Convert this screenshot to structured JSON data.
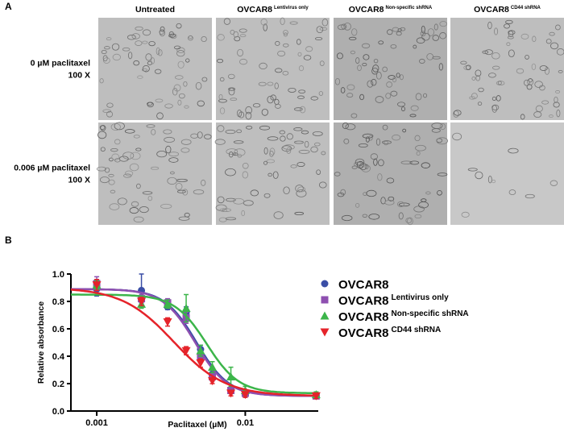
{
  "panel_a": {
    "label": "A",
    "columns": [
      {
        "main": "Untreated"
      },
      {
        "main": "OVCAR8",
        "sup": "Lentivirus only"
      },
      {
        "main": "OVCAR8",
        "sup": "Non-specific shRNA"
      },
      {
        "main": "OVCAR8",
        "sup": "CD44 shRNA"
      }
    ],
    "rows": [
      {
        "line1": "0 µM paclitaxel",
        "line2": "100 X"
      },
      {
        "line1": "0.006 µM paclitaxel",
        "line2": "100 X"
      }
    ]
  },
  "chart_data": {
    "type": "scatter",
    "panel_label": "B",
    "xlabel": "Paclitaxel (µM)",
    "ylabel": "Relative absorbance",
    "log_x": true,
    "xlim": [
      0.00067,
      0.031
    ],
    "ylim": [
      0,
      1.0
    ],
    "xticks": [
      0.001,
      0.01
    ],
    "yticks": [
      {
        "value": 0,
        "label": "0.0"
      },
      {
        "value": 0.2,
        "label": "0.2"
      },
      {
        "value": 0.4,
        "label": "0.4"
      },
      {
        "value": 0.6,
        "label": "0.6"
      },
      {
        "value": 0.8,
        "label": "0.8"
      },
      {
        "value": 1.0,
        "label": "1.0"
      }
    ],
    "x": [
      0.001,
      0.002,
      0.003,
      0.004,
      0.005,
      0.006,
      0.008,
      0.01,
      0.03
    ],
    "series": [
      {
        "name": "OVCAR8",
        "color": "#3a4ea6",
        "marker": "circle",
        "values": [
          0.89,
          0.88,
          0.76,
          0.72,
          0.45,
          0.27,
          0.15,
          0.12,
          0.11
        ],
        "errors": [
          0.05,
          0.12,
          0.02,
          0.04,
          0.03,
          0.03,
          0.02,
          0.01,
          0.02
        ],
        "fit": {
          "top": 0.89,
          "bottom": 0.11,
          "ec50": 0.0047,
          "hill": 4
        }
      },
      {
        "name": "OVCAR8",
        "sup": "Lentivirus only",
        "color": "#8e4fb0",
        "marker": "square",
        "values": [
          0.93,
          0.82,
          0.79,
          0.68,
          0.4,
          0.25,
          0.15,
          0.13,
          0.11
        ],
        "errors": [
          0.05,
          0.03,
          0.03,
          0.04,
          0.03,
          0.03,
          0.02,
          0.02,
          0.02
        ],
        "fit": {
          "top": 0.89,
          "bottom": 0.11,
          "ec50": 0.0046,
          "hill": 4
        }
      },
      {
        "name": "OVCAR8",
        "sup": "Non-specific shRNA",
        "color": "#3cb54a",
        "marker": "triangle",
        "values": [
          0.92,
          0.78,
          0.78,
          0.75,
          0.44,
          0.32,
          0.25,
          0.15,
          0.12
        ],
        "errors": [
          0.03,
          0.03,
          0.03,
          0.1,
          0.04,
          0.04,
          0.07,
          0.03,
          0.02
        ],
        "fit": {
          "top": 0.85,
          "bottom": 0.13,
          "ec50": 0.0055,
          "hill": 4
        }
      },
      {
        "name": "OVCAR8",
        "sup": "CD44 shRNA",
        "color": "#e5232a",
        "marker": "triangle-down",
        "values": [
          0.92,
          0.8,
          0.65,
          0.44,
          0.35,
          0.22,
          0.13,
          0.12,
          0.11
        ],
        "errors": [
          0.04,
          0.03,
          0.03,
          0.03,
          0.03,
          0.02,
          0.02,
          0.02,
          0.02
        ],
        "fit": {
          "top": 0.9,
          "bottom": 0.11,
          "ec50": 0.0033,
          "hill": 2.5
        }
      }
    ]
  }
}
